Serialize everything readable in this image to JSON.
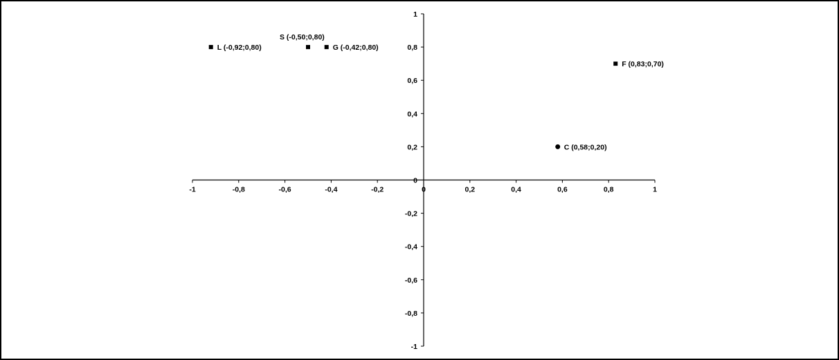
{
  "chart_data": {
    "type": "scatter",
    "title": "",
    "xlabel": "",
    "ylabel": "",
    "xlim": [
      -1,
      1
    ],
    "ylim": [
      -1,
      1
    ],
    "grid": false,
    "x_ticks": [
      "-1",
      "-0,8",
      "-0,6",
      "-0,4",
      "-0,2",
      "0",
      "0,2",
      "0,4",
      "0,6",
      "0,8",
      "1"
    ],
    "y_ticks": [
      "1",
      "0,8",
      "0,6",
      "0,4",
      "0,2",
      "0",
      "-0,2",
      "-0,4",
      "-0,6",
      "-0,8",
      "-1"
    ],
    "points": [
      {
        "x": -0.92,
        "y": 0.8,
        "label": "L (-0,92;0,80)",
        "label_pos": "right",
        "marker": "square"
      },
      {
        "x": -0.5,
        "y": 0.8,
        "label": "S (-0,50;0,80)",
        "label_pos": "above",
        "marker": "square"
      },
      {
        "x": -0.42,
        "y": 0.8,
        "label": "G (-0,42;0,80)",
        "label_pos": "right",
        "marker": "square"
      },
      {
        "x": 0.83,
        "y": 0.7,
        "label": "F (0,83;0,70)",
        "label_pos": "right",
        "marker": "square"
      },
      {
        "x": 0.58,
        "y": 0.2,
        "label": "C (0,58;0,20)",
        "label_pos": "right",
        "marker": "circle"
      }
    ],
    "marker_color": "#000000",
    "axis_color": "#000000"
  }
}
